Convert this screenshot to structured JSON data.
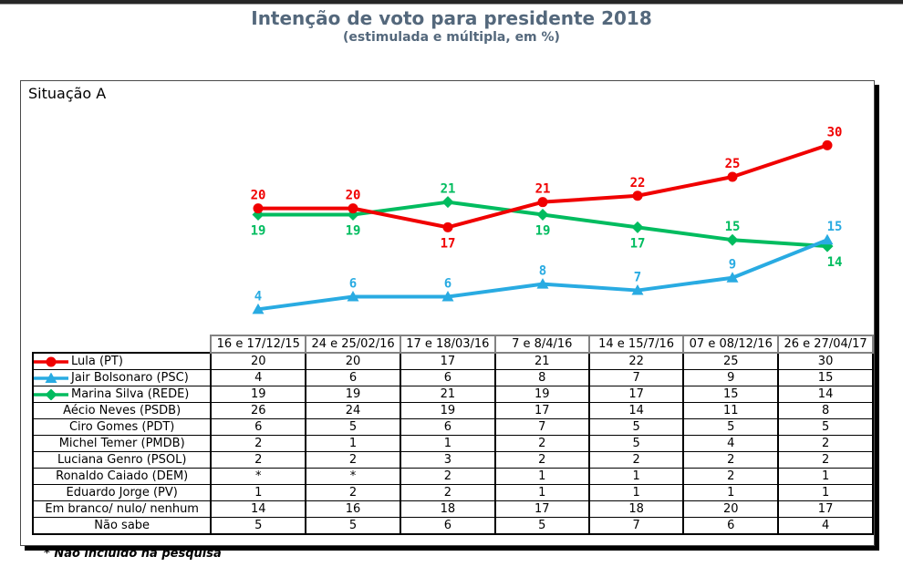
{
  "page": {
    "title": "Intenção de voto para presidente 2018",
    "subtitle": "(estimulada e múltipla, em %)",
    "panel_label": "Situação A",
    "footnote": "* Não incluído na pesquisa"
  },
  "colors": {
    "title_text": "#54687c",
    "lula_red": "#f00000",
    "bolsonaro_blue": "#29abe2",
    "marina_green": "#00bc5f",
    "table_border": "#000000",
    "header_border": "#828282"
  },
  "chart_data": {
    "type": "line",
    "title": "Intenção de voto para presidente 2018",
    "subtitle": "(estimulada e múltipla, em %)",
    "categories": [
      "16 e 17/12/15",
      "24 e 25/02/16",
      "17 e 18/03/16",
      "7 e 8/4/16",
      "14 e 15/7/16",
      "07 e 08/12/16",
      "26 e 27/04/17"
    ],
    "ylim": [
      0,
      40
    ],
    "grid": false,
    "axes_visible": false,
    "legend_position": "table-first-column",
    "series": [
      {
        "id": "lula",
        "name": "Lula (PT)",
        "color": "#f00000",
        "marker": "circle",
        "values": [
          20,
          20,
          17,
          21,
          22,
          25,
          30
        ],
        "label_side": [
          "above",
          "above",
          "below",
          "above",
          "above",
          "above",
          "above"
        ]
      },
      {
        "id": "jair-bolsonaro",
        "name": "Jair Bolsonaro (PSC)",
        "color": "#29abe2",
        "marker": "triangle-up",
        "values": [
          4,
          6,
          6,
          8,
          7,
          9,
          15
        ],
        "label_side": [
          "above",
          "above",
          "above",
          "above",
          "above",
          "above",
          "above"
        ]
      },
      {
        "id": "marina-silva",
        "name": "Marina Silva (REDE)",
        "color": "#00bc5f",
        "marker": "diamond",
        "values": [
          19,
          19,
          21,
          19,
          17,
          15,
          14
        ],
        "label_side": [
          "below",
          "below",
          "above",
          "below",
          "below",
          "above",
          "below"
        ]
      }
    ]
  },
  "table": {
    "col_headers": [
      "16 e 17/12/15",
      "24 e 25/02/16",
      "17 e 18/03/16",
      "7 e 8/4/16",
      "14 e 15/7/16",
      "07 e 08/12/16",
      "26 e 27/04/17"
    ],
    "rows": [
      {
        "label": "Lula (PT)",
        "series_ref": 0,
        "values": [
          "20",
          "20",
          "17",
          "21",
          "22",
          "25",
          "30"
        ]
      },
      {
        "label": "Jair Bolsonaro (PSC)",
        "series_ref": 1,
        "values": [
          "4",
          "6",
          "6",
          "8",
          "7",
          "9",
          "15"
        ]
      },
      {
        "label": "Marina Silva (REDE)",
        "series_ref": 2,
        "values": [
          "19",
          "19",
          "21",
          "19",
          "17",
          "15",
          "14"
        ]
      },
      {
        "label": "Aécio Neves (PSDB)",
        "series_ref": null,
        "values": [
          "26",
          "24",
          "19",
          "17",
          "14",
          "11",
          "8"
        ]
      },
      {
        "label": "Ciro Gomes (PDT)",
        "series_ref": null,
        "values": [
          "6",
          "5",
          "6",
          "7",
          "5",
          "5",
          "5"
        ]
      },
      {
        "label": "Michel Temer (PMDB)",
        "series_ref": null,
        "values": [
          "2",
          "1",
          "1",
          "2",
          "5",
          "4",
          "2"
        ]
      },
      {
        "label": "Luciana Genro (PSOL)",
        "series_ref": null,
        "values": [
          "2",
          "2",
          "3",
          "2",
          "2",
          "2",
          "2"
        ]
      },
      {
        "label": "Ronaldo Caiado (DEM)",
        "series_ref": null,
        "values": [
          "*",
          "*",
          "2",
          "1",
          "1",
          "2",
          "1"
        ]
      },
      {
        "label": "Eduardo Jorge (PV)",
        "series_ref": null,
        "values": [
          "1",
          "2",
          "2",
          "1",
          "1",
          "1",
          "1"
        ]
      },
      {
        "label": "Em branco/ nulo/ nenhum",
        "series_ref": null,
        "values": [
          "14",
          "16",
          "18",
          "17",
          "18",
          "20",
          "17"
        ]
      },
      {
        "label": "Não sabe",
        "series_ref": null,
        "values": [
          "5",
          "5",
          "6",
          "5",
          "7",
          "6",
          "4"
        ]
      }
    ]
  }
}
